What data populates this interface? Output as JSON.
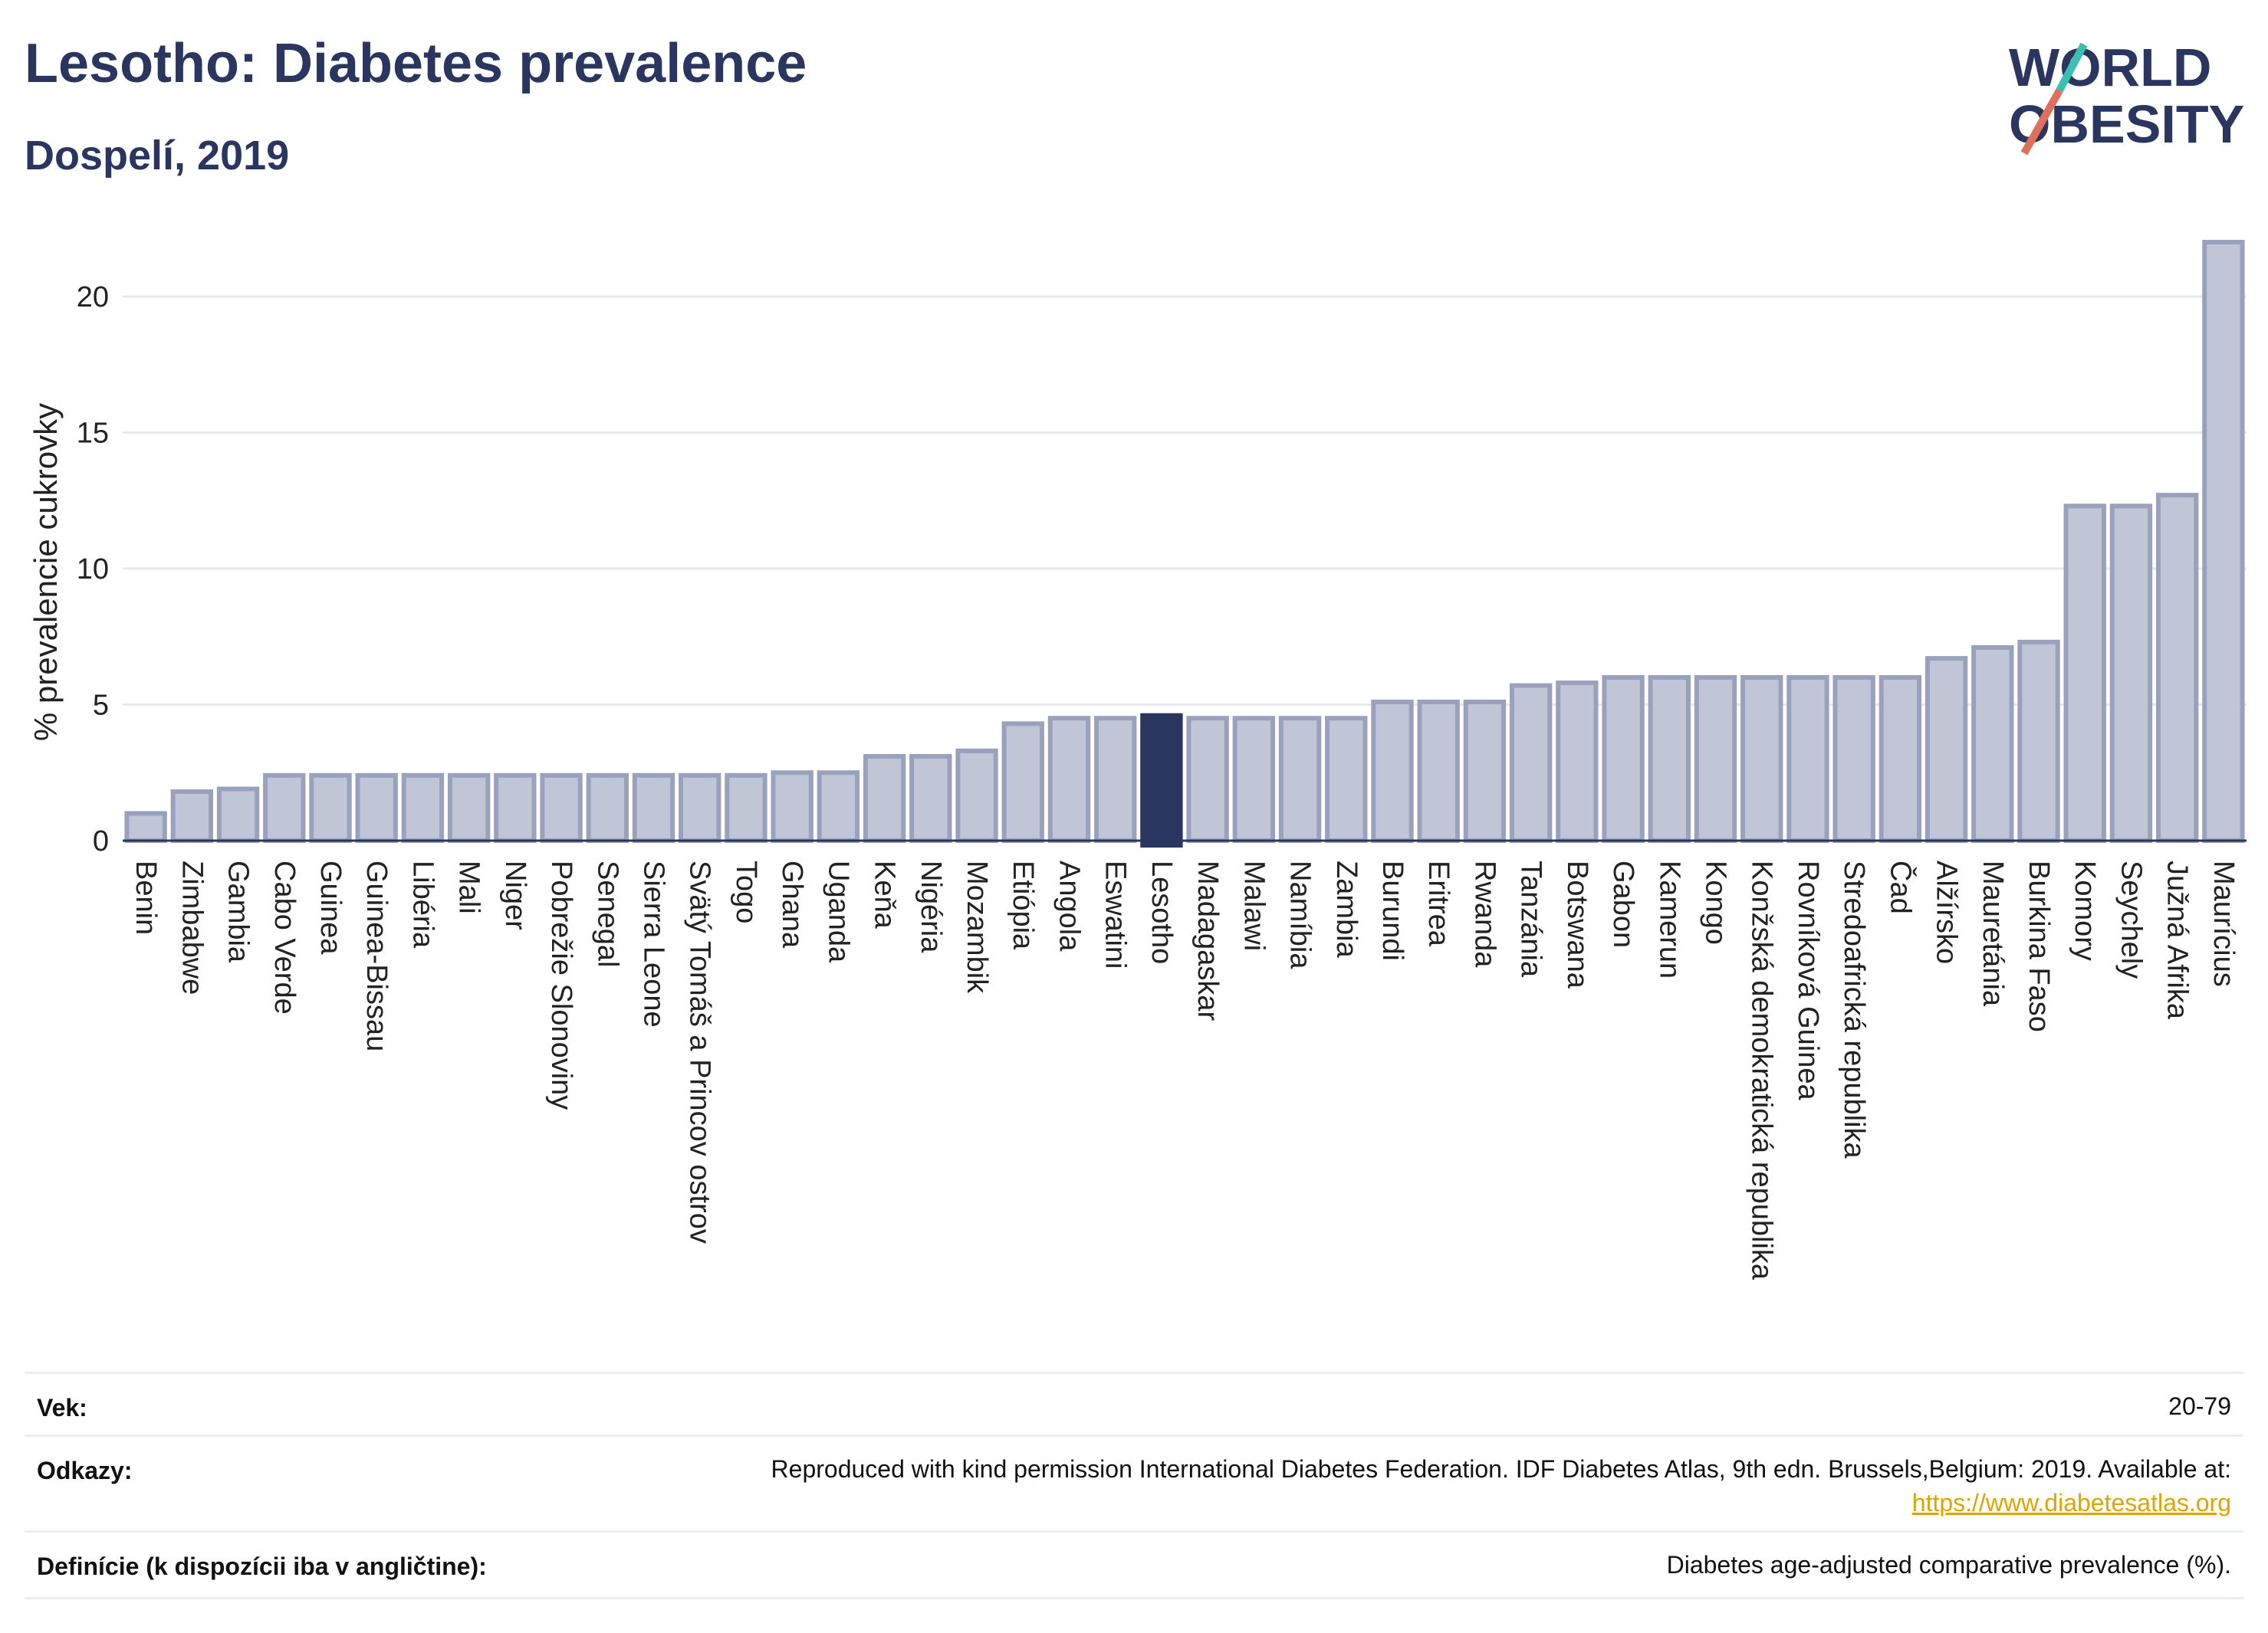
{
  "header": {
    "title": "Lesotho: Diabetes prevalence",
    "subtitle": "Dospelí, 2019"
  },
  "logo": {
    "line1": "WORLD",
    "line2": "OBESITY"
  },
  "colors": {
    "bar": "#c1c6d6",
    "bar_stroke": "#9aa1bd",
    "highlight": "#2a3560",
    "title": "#2a3560",
    "link": "#e0a400"
  },
  "chart_data": {
    "type": "bar",
    "ylabel": "% prevalencie cukrovky",
    "ylim": [
      0,
      22
    ],
    "yticks": [
      0,
      5,
      10,
      15,
      20
    ],
    "grid": true,
    "highlight": "Lesotho",
    "categories": [
      "Benin",
      "Zimbabwe",
      "Gambia",
      "Cabo Verde",
      "Guinea",
      "Guinea-Bissau",
      "Libéria",
      "Mali",
      "Niger",
      "Pobrežie Slonoviny",
      "Senegal",
      "Sierra Leone",
      "Svätý Tomáš a Princov ostrov",
      "Togo",
      "Ghana",
      "Uganda",
      "Keňa",
      "Nigéria",
      "Mozambik",
      "Etiópia",
      "Angola",
      "Eswatini",
      "Lesotho",
      "Madagaskar",
      "Malawi",
      "Namíbia",
      "Zambia",
      "Burundi",
      "Eritrea",
      "Rwanda",
      "Tanzánia",
      "Botswana",
      "Gabon",
      "Kamerun",
      "Kongo",
      "Konžská demokratická republika",
      "Rovníková Guinea",
      "Stredoafrická republika",
      "Čad",
      "Alžírsko",
      "Mauretánia",
      "Burkina Faso",
      "Komory",
      "Seychely",
      "Južná Afrika",
      "Maurícius"
    ],
    "values": [
      1.0,
      1.8,
      1.9,
      2.4,
      2.4,
      2.4,
      2.4,
      2.4,
      2.4,
      2.4,
      2.4,
      2.4,
      2.4,
      2.4,
      2.5,
      2.5,
      3.1,
      3.1,
      3.3,
      4.3,
      4.5,
      4.5,
      4.6,
      4.5,
      4.5,
      4.5,
      4.5,
      5.1,
      5.1,
      5.1,
      5.7,
      5.8,
      6.0,
      6.0,
      6.0,
      6.0,
      6.0,
      6.0,
      6.0,
      6.7,
      7.1,
      7.3,
      12.3,
      12.3,
      12.7,
      22.0
    ]
  },
  "info": {
    "age_label": "Vek:",
    "age_value": "20-79",
    "ref_label": "Odkazy:",
    "ref_text": "Reproduced with kind permission International Diabetes Federation. IDF Diabetes Atlas, 9th edn. Brussels,Belgium: 2019. Available at:",
    "ref_link": "https://www.diabetesatlas.org",
    "def_label": "Definície (k dispozícii iba v angličtine):",
    "def_value": "Diabetes age-adjusted comparative prevalence (%)."
  }
}
